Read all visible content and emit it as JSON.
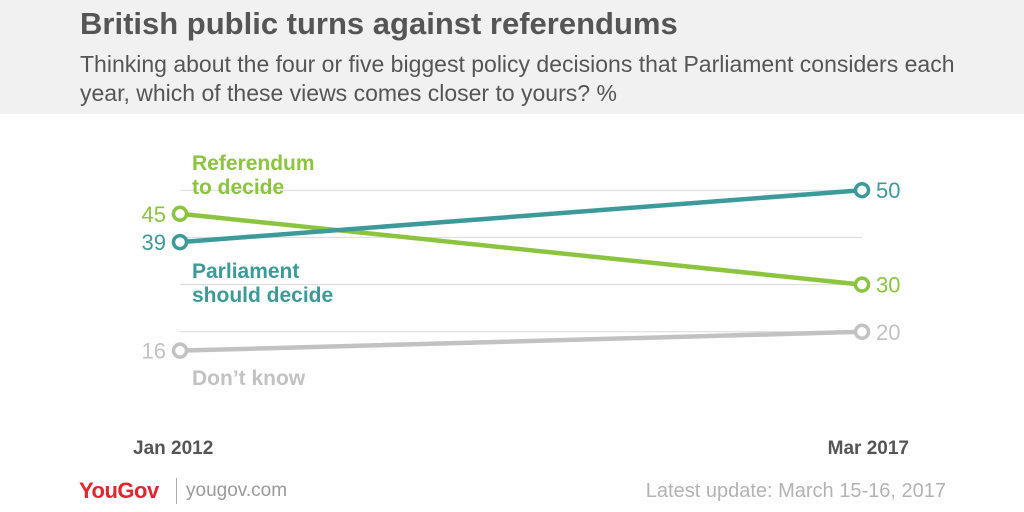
{
  "header": {
    "title": "British public turns against referendums",
    "subtitle": "Thinking about the four or five biggest policy decisions that Parliament considers each year, which of these views comes closer to yours? %"
  },
  "footer": {
    "logo": "YouGov",
    "site": "yougov.com",
    "update": "Latest update: March 15-16, 2017"
  },
  "colors": {
    "referendum": "#8cc43f",
    "parliament": "#3d9a9a",
    "dont_know": "#c2c2c2",
    "grid": "#d9d9d9",
    "text": "#555555",
    "brand": "#e3262e"
  },
  "chart_data": {
    "type": "line",
    "title": "British public turns against referendums",
    "x": [
      "Jan 2012",
      "Mar 2017"
    ],
    "series": [
      {
        "name": "Referendum to decide",
        "label_lines": [
          "Referendum",
          "to decide"
        ],
        "values": [
          45,
          30
        ],
        "color": "#8cc43f"
      },
      {
        "name": "Parliament should decide",
        "label_lines": [
          "Parliament",
          "should decide"
        ],
        "values": [
          39,
          50
        ],
        "color": "#3d9a9a"
      },
      {
        "name": "Don't know",
        "label_lines": [
          "Don’t know"
        ],
        "values": [
          16,
          20
        ],
        "color": "#c2c2c2"
      }
    ],
    "ylim": [
      10,
      60
    ],
    "grid": true,
    "legend": "inline labels"
  }
}
